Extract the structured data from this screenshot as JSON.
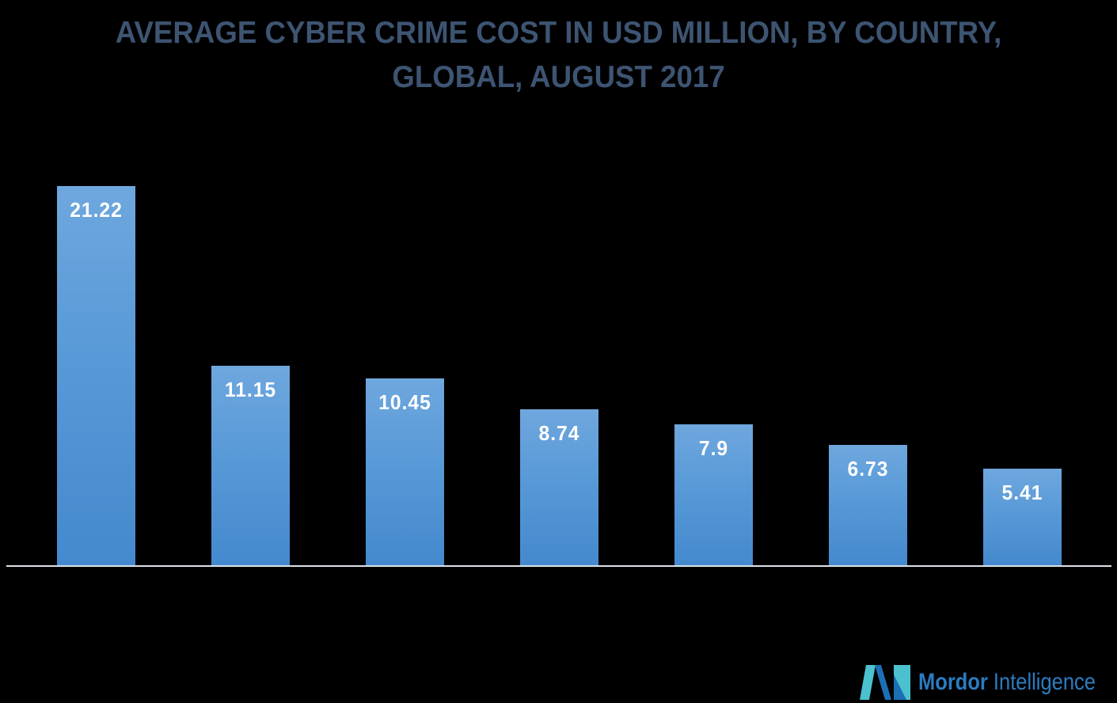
{
  "title": {
    "line1": "AVERAGE CYBER CRIME COST IN USD MILLION, BY COUNTRY,",
    "line2": "GLOBAL, AUGUST 2017"
  },
  "chart_data": {
    "type": "bar",
    "title": "AVERAGE CYBER CRIME COST IN USD MILLION, BY COUNTRY, GLOBAL, AUGUST 2017",
    "values": [
      21.22,
      11.15,
      10.45,
      8.74,
      7.9,
      6.73,
      5.41
    ],
    "labels": [
      "21.22",
      "11.15",
      "10.45",
      "8.74",
      "7.9",
      "6.73",
      "5.41"
    ],
    "categories": [
      "",
      "",
      "",
      "",
      "",
      "",
      ""
    ],
    "xlabel": "",
    "ylabel": "",
    "ylim": [
      0,
      21.22
    ],
    "grid": false,
    "legend": false,
    "bar_gradient_top": "#6FA7DE",
    "bar_gradient_bottom": "#4489CE",
    "label_color": "#FFFFFF",
    "axis_line_color": "#DCE1E8"
  },
  "logo": {
    "brand_word1": "Mordor",
    "brand_word2": "Intelligence",
    "text_color": "#2B7CC1",
    "mark_teal": "#4BC1CF",
    "mark_blue": "#1C6FB4"
  },
  "colors": {
    "background": "#000000",
    "title": "#3D5472"
  }
}
